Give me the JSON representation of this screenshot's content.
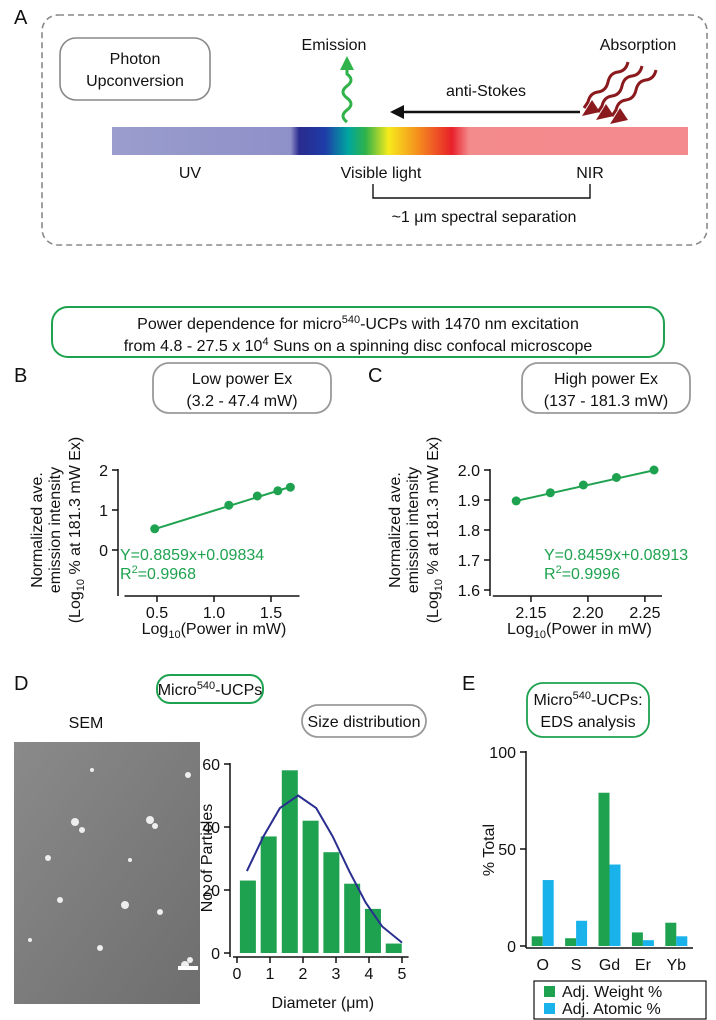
{
  "panel_labels": [
    "A",
    "B",
    "C",
    "D",
    "E"
  ],
  "diagram": {
    "box_label": [
      "Photon",
      "Upconversion"
    ],
    "emission": "Emission",
    "absorption": "Absorption",
    "arrow": "anti-Stokes",
    "regions": [
      "UV",
      "Visible light",
      "NIR"
    ],
    "separation": "~1 μm spectral separation"
  },
  "banner": [
    {
      "pre": "Power dependence for micro",
      "sup": "540",
      "post": "-UCPs with 1470 nm excitation"
    },
    {
      "pre": "from 4.8 - 27.5 x 10",
      "sup": "4",
      "post": " Suns on a spinning disc confocal microscope"
    }
  ],
  "micro_header": {
    "pre": "Micro",
    "sup": "540",
    "post": "-UCPs"
  },
  "sem": {
    "title": "SEM"
  },
  "chart_data": [
    {
      "type": "scatter",
      "title": [
        "Low power Ex",
        "(3.2 - 47.4 mW)"
      ],
      "y_label": [
        "Normalized ave.",
        "emission intensity",
        {
          "pre": "(Log",
          "sub": "10",
          "post": " % at 181.3 mW Ex)"
        }
      ],
      "x_label": {
        "pre": "Log",
        "sub": "10",
        "post": "(Power in mW)"
      },
      "x": [
        0.48,
        1.13,
        1.38,
        1.56,
        1.67
      ],
      "series": [
        {
          "color": "#1ea24f",
          "values": [
            0.53,
            1.12,
            1.35,
            1.48,
            1.57
          ]
        }
      ],
      "fit": {
        "slope": 0.8859,
        "intercept": 0.09834
      },
      "annotations": [
        "Y=0.8859x+0.09834",
        {
          "pre": "R",
          "sup": "2",
          "post": "=0.9968"
        }
      ],
      "xlim": [
        0.25,
        1.75
      ],
      "xticks": [
        0.5,
        {
          "value": 1,
          "label": "1.0"
        },
        1.5
      ],
      "ylim": [
        -1,
        2
      ],
      "yticks": [
        0,
        1,
        2
      ]
    },
    {
      "type": "scatter",
      "title": [
        "High power Ex",
        "(137 - 181.3 mW)"
      ],
      "y_label": [
        "Normalized ave.",
        "emission intensity",
        {
          "pre": "(Log",
          "sub": "10",
          "post": " % at 181.3 mW Ex)"
        }
      ],
      "x_label": {
        "pre": "Log",
        "sub": "10",
        "post": "(Power in mW)"
      },
      "x": [
        2.137,
        2.167,
        2.196,
        2.225,
        2.258
      ],
      "series": [
        {
          "color": "#1ea24f",
          "values": [
            1.897,
            1.924,
            1.95,
            1.975,
            2.0
          ]
        }
      ],
      "fit": {
        "slope": 0.8459,
        "intercept": 0.08913
      },
      "annotations": [
        "Y=0.8459x+0.08913",
        {
          "pre": "R",
          "sup": "2",
          "post": "=0.9996"
        }
      ],
      "xlim": [
        2.12,
        2.265
      ],
      "xticks": [
        2.15,
        {
          "value": 2.2,
          "label": "2.20"
        },
        2.25
      ],
      "ylim": [
        1.6,
        2.0
      ],
      "yticks": [
        1.6,
        1.7,
        1.8,
        1.9,
        {
          "value": 2,
          "label": "2.0"
        }
      ]
    },
    {
      "type": "bar",
      "title": [
        "Size distribution"
      ],
      "y_label": [
        "No. of Particles"
      ],
      "x_label": "Diameter (μm)",
      "x": [
        0.33,
        0.96,
        1.6,
        2.23,
        2.86,
        3.49,
        4.12,
        4.75
      ],
      "series": [
        {
          "color": "#1ea24f",
          "values": [
            23,
            37,
            58,
            42,
            32,
            22,
            14,
            3
          ]
        }
      ],
      "fit_curve": {
        "color": "#2a2f8f",
        "x": [
          0.3,
          0.8,
          1.3,
          1.85,
          2.4,
          2.9,
          3.4,
          3.9,
          4.4,
          5.0
        ],
        "values": [
          26,
          37,
          46,
          50,
          46,
          37,
          26,
          16,
          8.4,
          3.3
        ]
      },
      "xlim": [
        0,
        5.2
      ],
      "xticks": [
        0,
        1,
        2,
        3,
        4,
        5
      ],
      "ylim": [
        0,
        60
      ],
      "yticks": [
        0,
        20,
        40,
        60
      ]
    },
    {
      "type": "grouped_bar",
      "title": [
        {
          "pre": "Micro",
          "sup": "540",
          "post": "-UCPs:"
        },
        "EDS analysis"
      ],
      "y_label": [
        "% Total"
      ],
      "categories": [
        "O",
        "S",
        "Gd",
        "Er",
        "Yb"
      ],
      "series": [
        {
          "name": "Adj. Weight %",
          "color": "#1ea24f",
          "values": [
            5,
            4,
            79,
            7,
            12
          ]
        },
        {
          "name": "Adj. Atomic %",
          "color": "#1ab2ea",
          "values": [
            34,
            13,
            42,
            3,
            5
          ]
        }
      ],
      "ylim": [
        0,
        100
      ],
      "yticks": [
        0,
        50,
        100
      ],
      "legend": "below"
    }
  ]
}
